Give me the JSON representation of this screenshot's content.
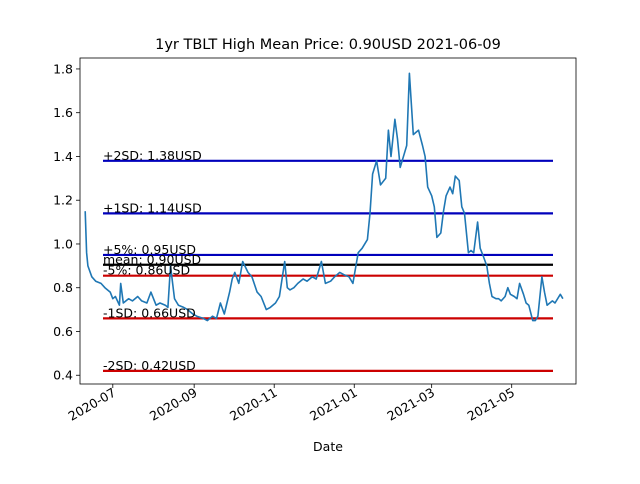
{
  "chart_data": {
    "type": "line",
    "title": "1yr TBLT High Mean Price: 0.90USD 2021-06-09",
    "xlabel": "Date",
    "ylabel": "",
    "ylim": [
      0.36,
      1.85
    ],
    "xlim": [
      "2020-06-06",
      "2021-06-19"
    ],
    "x_ticks": [
      {
        "date": "2020-07-01",
        "label": "2020-07"
      },
      {
        "date": "2020-09-01",
        "label": "2020-09"
      },
      {
        "date": "2020-11-01",
        "label": "2020-11"
      },
      {
        "date": "2021-01-01",
        "label": "2021-01"
      },
      {
        "date": "2021-03-01",
        "label": "2021-03"
      },
      {
        "date": "2021-05-01",
        "label": "2021-05"
      }
    ],
    "y_ticks": [
      0.4,
      0.6,
      0.8,
      1.0,
      1.2,
      1.4,
      1.6,
      1.8
    ],
    "y_tick_labels": [
      "0.4",
      "0.6",
      "0.8",
      "1.0",
      "1.2",
      "1.4",
      "1.6",
      "1.8"
    ],
    "line_color": "#1f77b4",
    "series": [
      {
        "x": [
          "2020-06-10",
          "2020-06-11",
          "2020-06-12",
          "2020-06-15",
          "2020-06-18",
          "2020-06-22",
          "2020-06-25",
          "2020-06-29",
          "2020-07-01",
          "2020-07-03",
          "2020-07-06",
          "2020-07-07",
          "2020-07-09",
          "2020-07-13",
          "2020-07-16",
          "2020-07-20",
          "2020-07-23",
          "2020-07-27",
          "2020-07-30",
          "2020-08-03",
          "2020-08-06",
          "2020-08-10",
          "2020-08-12",
          "2020-08-14",
          "2020-08-17",
          "2020-08-18",
          "2020-08-20",
          "2020-08-24",
          "2020-08-27",
          "2020-08-31",
          "2020-09-03",
          "2020-09-08",
          "2020-09-11",
          "2020-09-15",
          "2020-09-18",
          "2020-09-21",
          "2020-09-24",
          "2020-09-28",
          "2020-09-30",
          "2020-10-02",
          "2020-10-05",
          "2020-10-08",
          "2020-10-12",
          "2020-10-15",
          "2020-10-19",
          "2020-10-22",
          "2020-10-26",
          "2020-10-29",
          "2020-11-02",
          "2020-11-05",
          "2020-11-09",
          "2020-11-11",
          "2020-11-13",
          "2020-11-16",
          "2020-11-19",
          "2020-11-23",
          "2020-11-26",
          "2020-11-30",
          "2020-12-03",
          "2020-12-07",
          "2020-12-10",
          "2020-12-14",
          "2020-12-17",
          "2020-12-21",
          "2020-12-24",
          "2020-12-28",
          "2020-12-31",
          "2021-01-04",
          "2021-01-07",
          "2021-01-11",
          "2021-01-13",
          "2021-01-15",
          "2021-01-18",
          "2021-01-21",
          "2021-01-25",
          "2021-01-27",
          "2021-01-29",
          "2021-02-01",
          "2021-02-03",
          "2021-02-05",
          "2021-02-08",
          "2021-02-10",
          "2021-02-12",
          "2021-02-15",
          "2021-02-17",
          "2021-02-19",
          "2021-02-22",
          "2021-02-24",
          "2021-02-26",
          "2021-03-01",
          "2021-03-03",
          "2021-03-05",
          "2021-03-08",
          "2021-03-10",
          "2021-03-12",
          "2021-03-15",
          "2021-03-17",
          "2021-03-19",
          "2021-03-22",
          "2021-03-24",
          "2021-03-26",
          "2021-03-29",
          "2021-03-31",
          "2021-04-02",
          "2021-04-05",
          "2021-04-07",
          "2021-04-09",
          "2021-04-12",
          "2021-04-14",
          "2021-04-16",
          "2021-04-19",
          "2021-04-21",
          "2021-04-23",
          "2021-04-26",
          "2021-04-28",
          "2021-04-30",
          "2021-05-03",
          "2021-05-05",
          "2021-05-07",
          "2021-05-10",
          "2021-05-12",
          "2021-05-14",
          "2021-05-17",
          "2021-05-19",
          "2021-05-21",
          "2021-05-24",
          "2021-05-26",
          "2021-05-28",
          "2021-06-01",
          "2021-06-03",
          "2021-06-07",
          "2021-06-09"
        ],
        "values": [
          1.15,
          0.96,
          0.9,
          0.85,
          0.83,
          0.82,
          0.8,
          0.78,
          0.75,
          0.76,
          0.72,
          0.82,
          0.73,
          0.75,
          0.74,
          0.76,
          0.74,
          0.73,
          0.78,
          0.72,
          0.73,
          0.72,
          0.71,
          0.9,
          0.75,
          0.74,
          0.72,
          0.71,
          0.7,
          0.68,
          0.67,
          0.66,
          0.65,
          0.67,
          0.66,
          0.73,
          0.68,
          0.78,
          0.84,
          0.87,
          0.82,
          0.92,
          0.87,
          0.85,
          0.78,
          0.76,
          0.7,
          0.71,
          0.73,
          0.76,
          0.92,
          0.8,
          0.79,
          0.8,
          0.82,
          0.84,
          0.83,
          0.85,
          0.84,
          0.92,
          0.82,
          0.83,
          0.85,
          0.87,
          0.86,
          0.85,
          0.82,
          0.96,
          0.98,
          1.02,
          1.14,
          1.32,
          1.38,
          1.27,
          1.3,
          1.52,
          1.4,
          1.57,
          1.48,
          1.35,
          1.41,
          1.45,
          1.78,
          1.5,
          1.51,
          1.52,
          1.45,
          1.4,
          1.26,
          1.22,
          1.17,
          1.03,
          1.05,
          1.15,
          1.22,
          1.26,
          1.23,
          1.31,
          1.29,
          1.17,
          1.14,
          0.96,
          0.97,
          0.96,
          1.1,
          0.98,
          0.95,
          0.9,
          0.82,
          0.76,
          0.75,
          0.75,
          0.74,
          0.76,
          0.8,
          0.77,
          0.76,
          0.75,
          0.82,
          0.77,
          0.73,
          0.72,
          0.65,
          0.65,
          0.67,
          0.85,
          0.78,
          0.72,
          0.74,
          0.73,
          0.77,
          0.75
        ]
      }
    ],
    "reference_lines": [
      {
        "label": "+2SD: 1.38USD",
        "value": 1.38,
        "color": "#0000bb"
      },
      {
        "label": "+1SD: 1.14USD",
        "value": 1.14,
        "color": "#0000bb"
      },
      {
        "label": "+5%: 0.95USD",
        "value": 0.95,
        "color": "#0000bb"
      },
      {
        "label": "mean: 0.90USD",
        "value": 0.905,
        "color": "#000000"
      },
      {
        "label": "-5%: 0.86USD",
        "value": 0.855,
        "color": "#cc0000"
      },
      {
        "label": "-1SD: 0.66USD",
        "value": 0.66,
        "color": "#cc0000"
      },
      {
        "label": "-2SD: 0.42USD",
        "value": 0.42,
        "color": "#cc0000"
      }
    ],
    "grid": false,
    "legend": "none"
  }
}
